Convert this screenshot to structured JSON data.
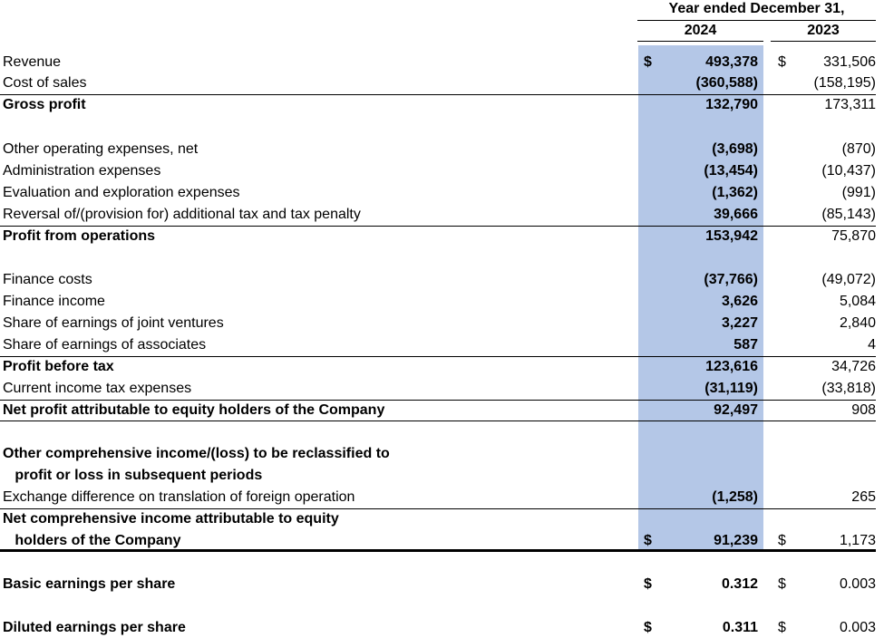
{
  "header": {
    "title": "Year ended December 31,",
    "col1": "2024",
    "col2": "2023"
  },
  "highlight_color": "#b4c7e7",
  "rows": [
    {
      "label": "Revenue",
      "bold": false,
      "d1": "$",
      "v1": "493,378",
      "d2": "$",
      "v2": "331,506"
    },
    {
      "label": "Cost of sales",
      "bold": false,
      "v1": "(360,588)",
      "v2": "(158,195)"
    },
    {
      "label": "Gross profit",
      "bold": true,
      "v1": "132,790",
      "v2": "173,311"
    },
    {
      "label": "Other operating expenses, net",
      "bold": false,
      "v1": "(3,698)",
      "v2": "(870)"
    },
    {
      "label": "Administration expenses",
      "bold": false,
      "v1": "(13,454)",
      "v2": "(10,437)"
    },
    {
      "label": "Evaluation and exploration expenses",
      "bold": false,
      "v1": "(1,362)",
      "v2": "(991)"
    },
    {
      "label": "Reversal of/(provision for) additional tax and tax penalty",
      "bold": false,
      "v1": "39,666",
      "v2": "(85,143)"
    },
    {
      "label": "Profit from operations",
      "bold": true,
      "v1": "153,942",
      "v2": "75,870"
    },
    {
      "label": "Finance costs",
      "bold": false,
      "v1": "(37,766)",
      "v2": "(49,072)"
    },
    {
      "label": "Finance income",
      "bold": false,
      "v1": "3,626",
      "v2": "5,084"
    },
    {
      "label": "Share of earnings of joint ventures",
      "bold": false,
      "v1": "3,227",
      "v2": "2,840"
    },
    {
      "label": "Share of earnings of associates",
      "bold": false,
      "v1": "587",
      "v2": "4"
    },
    {
      "label": "Profit before tax",
      "bold": true,
      "v1": "123,616",
      "v2": "34,726"
    },
    {
      "label": "Current income tax expenses",
      "bold": false,
      "v1": "(31,119)",
      "v2": "(33,818)"
    },
    {
      "label": "Net profit attributable to equity holders of the Company",
      "bold": true,
      "v1": "92,497",
      "v2": "908"
    },
    {
      "label": "Other comprehensive income/(loss) to be reclassified to",
      "bold": true
    },
    {
      "label": "   profit or loss in subsequent periods",
      "bold": true
    },
    {
      "label": "Exchange difference on translation of foreign operation",
      "bold": false,
      "v1": "(1,258)",
      "v2": "265"
    },
    {
      "label": "Net comprehensive income attributable to equity",
      "bold": true
    },
    {
      "label": "   holders of the Company",
      "bold": true,
      "d1": "$",
      "v1": "91,239",
      "d2": "$",
      "v2": "1,173"
    },
    {
      "label": "Basic earnings per share",
      "bold": true,
      "d1": "$",
      "v1": "0.312",
      "d2": "$",
      "v2": "0.003"
    },
    {
      "label": "Diluted earnings per share",
      "bold": true,
      "d1": "$",
      "v1": "0.311",
      "d2": "$",
      "v2": "0.003"
    }
  ]
}
